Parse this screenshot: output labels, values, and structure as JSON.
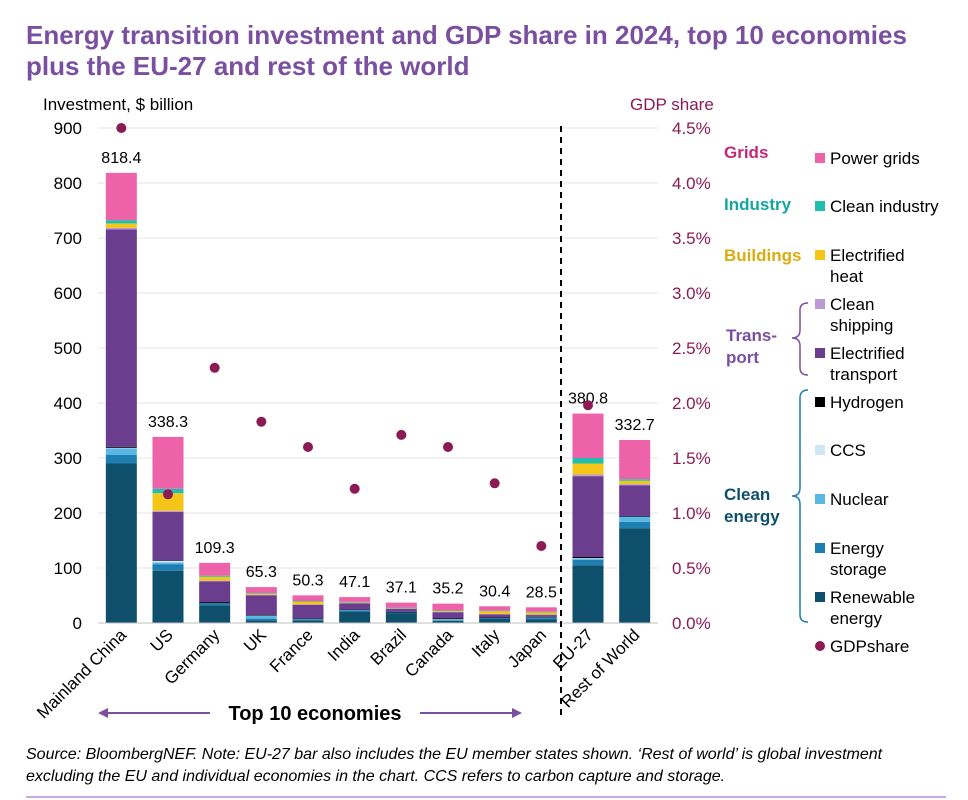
{
  "title": "Energy transition investment and GDP share in 2024, top 10 economies plus the EU-27 and rest of the world",
  "source": "Source: BloombergNEF. Note: EU-27 bar also includes the EU member states shown. ‘Rest of world’ is global investment excluding the EU and individual economies in the chart. CCS refers to carbon capture and storage.",
  "top10_label": "Top 10 economies",
  "colors": {
    "renewable_energy": "#0e4f6c",
    "energy_storage": "#1c7fb0",
    "nuclear": "#5bb8e4",
    "ccs": "#cce8f4",
    "hydrogen": "#000000",
    "electrified_transport": "#6a3d8f",
    "clean_shipping": "#b99ad3",
    "electrified_heat": "#f5c518",
    "clean_industry": "#1fbfb0",
    "power_grids": "#ee62a9",
    "gdp_share": "#8b1a55",
    "grids_group": "#c2287e",
    "industry_group": "#12a89c",
    "buildings_group": "#d9ac0f",
    "transport_group": "#7b4fa0",
    "clean_energy_group": "#0e4f6c"
  },
  "legend_groups": [
    {
      "label": "Grids",
      "color_key": "grids_group"
    },
    {
      "label": "Industry",
      "color_key": "industry_group"
    },
    {
      "label": "Buildings",
      "color_key": "buildings_group"
    },
    {
      "label": "Trans-\nport",
      "color_key": "transport_group"
    },
    {
      "label": "Clean\nenergy",
      "color_key": "clean_energy_group"
    }
  ],
  "legend_items": [
    {
      "label": "Power grids",
      "color_key": "power_grids",
      "marker": "square"
    },
    {
      "label": "Clean industry",
      "color_key": "clean_industry",
      "marker": "square"
    },
    {
      "label": "Electrified\nheat",
      "color_key": "electrified_heat",
      "marker": "square"
    },
    {
      "label": "Clean\nshipping",
      "color_key": "clean_shipping",
      "marker": "square"
    },
    {
      "label": "Electrified\ntransport",
      "color_key": "electrified_transport",
      "marker": "square"
    },
    {
      "label": "Hydrogen",
      "color_key": "hydrogen",
      "marker": "square"
    },
    {
      "label": "CCS",
      "color_key": "ccs",
      "marker": "square"
    },
    {
      "label": "Nuclear",
      "color_key": "nuclear",
      "marker": "square"
    },
    {
      "label": "Energy\nstorage",
      "color_key": "energy_storage",
      "marker": "square"
    },
    {
      "label": "Renewable\nenergy",
      "color_key": "renewable_energy",
      "marker": "square"
    },
    {
      "label": "GDPshare",
      "color_key": "gdp_share",
      "marker": "dot"
    }
  ],
  "chart_data": {
    "type": "bar",
    "stacked": true,
    "categories": [
      "Mainland China",
      "US",
      "Germany",
      "UK",
      "France",
      "India",
      "Brazil",
      "Canada",
      "Italy",
      "Japan",
      "EU-27",
      "Rest of World"
    ],
    "totals": [
      818.4,
      338.3,
      109.3,
      65.3,
      50.3,
      47.1,
      37.1,
      35.2,
      30.4,
      28.5,
      380.8,
      332.7
    ],
    "series": [
      {
        "name": "Renewable energy",
        "color_key": "renewable_energy",
        "values": [
          290,
          95,
          32,
          5,
          5,
          20,
          18,
          4,
          8,
          7,
          105,
          172
        ]
      },
      {
        "name": "Energy storage",
        "color_key": "energy_storage",
        "values": [
          16,
          12,
          4,
          3,
          2,
          2,
          2,
          1,
          2,
          2,
          10,
          12
        ]
      },
      {
        "name": "Nuclear",
        "color_key": "nuclear",
        "values": [
          12,
          3,
          0,
          5,
          1,
          2,
          0,
          2,
          0,
          2,
          2,
          10
        ]
      },
      {
        "name": "CCS",
        "color_key": "ccs",
        "values": [
          0.5,
          3,
          0,
          1,
          0,
          0,
          0,
          1,
          0,
          0,
          1,
          0
        ]
      },
      {
        "name": "Hydrogen",
        "color_key": "hydrogen",
        "values": [
          2,
          1,
          2,
          0.5,
          0.5,
          0.3,
          0.2,
          0.2,
          0.2,
          0.2,
          2,
          0.5
        ]
      },
      {
        "name": "Electrified transport",
        "color_key": "electrified_transport",
        "values": [
          395,
          88,
          38,
          36,
          25,
          12,
          6,
          12,
          6,
          4,
          147,
          56
        ]
      },
      {
        "name": "Clean shipping",
        "color_key": "clean_shipping",
        "values": [
          3,
          2,
          1,
          1,
          0.5,
          0.2,
          0.2,
          0.2,
          0.2,
          0.2,
          3,
          2
        ]
      },
      {
        "name": "Electrified heat",
        "color_key": "electrified_heat",
        "values": [
          8,
          32,
          7,
          2,
          5,
          1,
          1,
          2,
          5,
          4,
          20,
          6
        ]
      },
      {
        "name": "Clean industry",
        "color_key": "clean_industry",
        "values": [
          6,
          8,
          2,
          1,
          1,
          1,
          0.5,
          0.5,
          1,
          1,
          10,
          3
        ]
      },
      {
        "name": "Power grids",
        "color_key": "power_grids",
        "values": [
          85.9,
          94.3,
          23.3,
          10.8,
          10.3,
          8.6,
          9.2,
          12.3,
          8,
          8.1,
          80.8,
          71.2
        ]
      }
    ],
    "gdp_share": {
      "name": "GDPshare",
      "values": [
        4.5,
        1.17,
        2.32,
        1.83,
        1.6,
        1.22,
        1.71,
        1.6,
        1.27,
        0.7,
        1.98,
        null
      ]
    },
    "ylabel": "Investment, $ billion",
    "ylim": [
      0,
      900
    ],
    "yticks": [
      "0",
      "100",
      "200",
      "300",
      "400",
      "500",
      "600",
      "700",
      "800",
      "900"
    ],
    "y2label": "GDP share",
    "y2lim": [
      0,
      4.5
    ],
    "y2ticks": [
      "0.0%",
      "0.5%",
      "1.0%",
      "1.5%",
      "2.0%",
      "2.5%",
      "3.0%",
      "3.5%",
      "4.0%",
      "4.5%"
    ],
    "grid": true,
    "legend_position": "right"
  }
}
